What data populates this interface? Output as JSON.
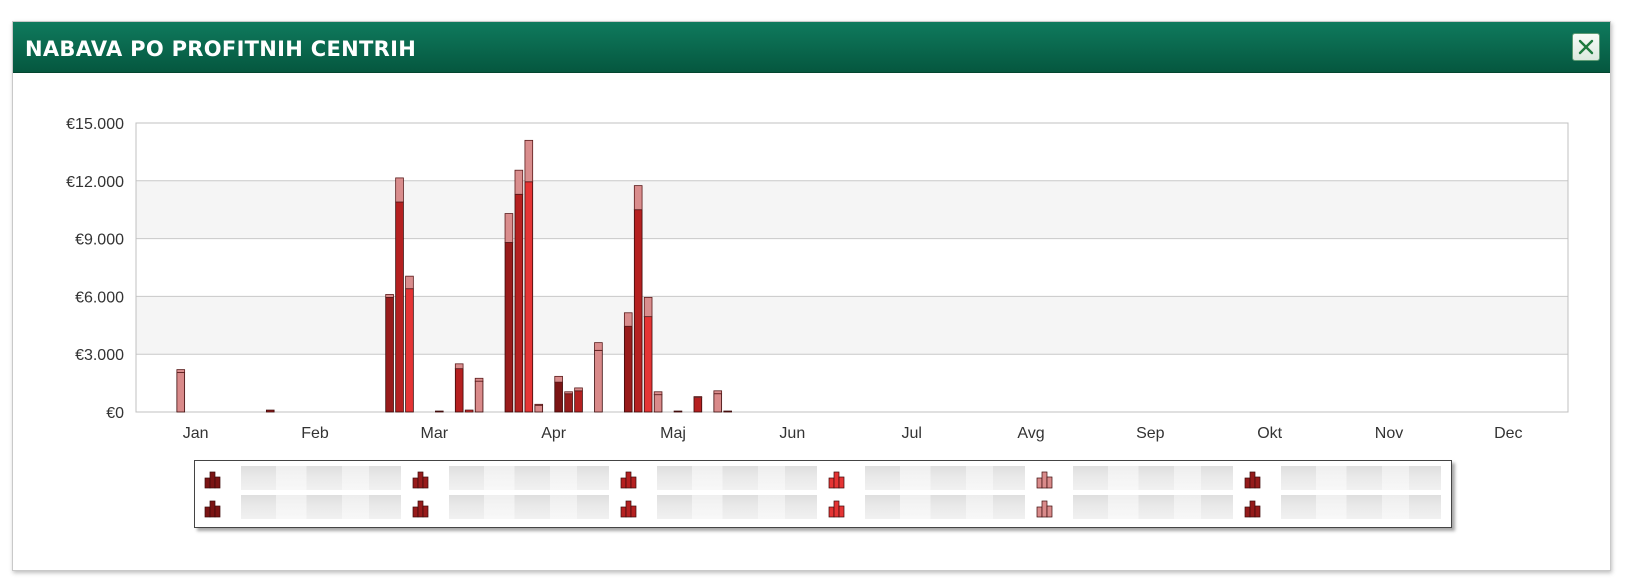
{
  "dialog": {
    "title": "NABAVA PO PROFITNIH CENTRIH",
    "close_icon": "close-x-icon",
    "header_color": "#0a6a4e"
  },
  "chart_data": {
    "type": "bar",
    "stacked": true,
    "y_axis": {
      "min": 0,
      "max": 15000,
      "ticks": [
        0,
        3000,
        6000,
        9000,
        12000,
        15000
      ],
      "tick_labels": [
        "€0",
        "€3.000",
        "€6.000",
        "€9.000",
        "€12.000",
        "€15.000"
      ]
    },
    "x_axis": {
      "categories": [
        "Jan",
        "Feb",
        "Mar",
        "Apr",
        "Maj",
        "Jun",
        "Jul",
        "Avg",
        "Sep",
        "Okt",
        "Nov",
        "Dec"
      ]
    },
    "grid": true,
    "alternating_bands": true,
    "legend_position": "bottom",
    "series_colors": [
      "#7b1414",
      "#981b1b",
      "#b52020",
      "#e53434",
      "#d98a8a",
      "#951b1b"
    ],
    "bars": [
      {
        "month": "Jan",
        "week": 4,
        "value": 2050,
        "top": 150
      },
      {
        "month": "Feb",
        "week": 1,
        "value": 100,
        "top": 0
      },
      {
        "month": "Mar",
        "week": 1,
        "value": 5950,
        "top": 150
      },
      {
        "month": "Mar",
        "week": 2,
        "value": 10900,
        "top": 1250
      },
      {
        "month": "Mar",
        "week": 3,
        "value": 6400,
        "top": 650
      },
      {
        "month": "Mar",
        "week": 6,
        "value": 50,
        "top": 0
      },
      {
        "month": "Mar",
        "week": 8,
        "value": 2250,
        "top": 250
      },
      {
        "month": "Mar",
        "week": 9,
        "value": 100,
        "top": 0
      },
      {
        "month": "Mar",
        "week": 10,
        "value": 1600,
        "top": 150
      },
      {
        "month": "Apr",
        "week": 1,
        "value": 8800,
        "top": 1500
      },
      {
        "month": "Apr",
        "week": 2,
        "value": 11300,
        "top": 1250
      },
      {
        "month": "Apr",
        "week": 3,
        "value": 11950,
        "top": 2150
      },
      {
        "month": "Apr",
        "week": 4,
        "value": 350,
        "top": 50
      },
      {
        "month": "Apr",
        "week": 6,
        "value": 1550,
        "top": 300
      },
      {
        "month": "Apr",
        "week": 7,
        "value": 950,
        "top": 100
      },
      {
        "month": "Apr",
        "week": 8,
        "value": 1100,
        "top": 150
      },
      {
        "month": "Apr",
        "week": 10,
        "value": 3200,
        "top": 400
      },
      {
        "month": "Maj",
        "week": 1,
        "value": 4450,
        "top": 700
      },
      {
        "month": "Maj",
        "week": 2,
        "value": 10500,
        "top": 1250
      },
      {
        "month": "Maj",
        "week": 3,
        "value": 4950,
        "top": 1000
      },
      {
        "month": "Maj",
        "week": 4,
        "value": 900,
        "top": 150
      },
      {
        "month": "Maj",
        "week": 6,
        "value": 50,
        "top": 0
      },
      {
        "month": "Maj",
        "week": 8,
        "value": 750,
        "top": 50
      },
      {
        "month": "Maj",
        "week": 10,
        "value": 950,
        "top": 150
      },
      {
        "month": "Maj",
        "week": 11,
        "value": 50,
        "top": 0
      }
    ]
  },
  "legend": {
    "items": [
      {
        "icon": "bar-legend-icon",
        "color": "#7b1414",
        "label": ""
      },
      {
        "icon": "bar-legend-icon",
        "color": "#981b1b",
        "label": ""
      },
      {
        "icon": "bar-legend-icon",
        "color": "#b52020",
        "label": ""
      },
      {
        "icon": "bar-legend-icon",
        "color": "#e53434",
        "label": ""
      },
      {
        "icon": "bar-legend-icon",
        "color": "#d98a8a",
        "label": ""
      },
      {
        "icon": "bar-legend-icon",
        "color": "#951b1b",
        "label": ""
      },
      {
        "icon": "bar-legend-icon",
        "color": "#7b1414",
        "label": ""
      },
      {
        "icon": "bar-legend-icon",
        "color": "#981b1b",
        "label": ""
      },
      {
        "icon": "bar-legend-icon",
        "color": "#b52020",
        "label": ""
      },
      {
        "icon": "bar-legend-icon",
        "color": "#e53434",
        "label": ""
      },
      {
        "icon": "bar-legend-icon",
        "color": "#d98a8a",
        "label": ""
      },
      {
        "icon": "bar-legend-icon",
        "color": "#951b1b",
        "label": ""
      }
    ]
  }
}
